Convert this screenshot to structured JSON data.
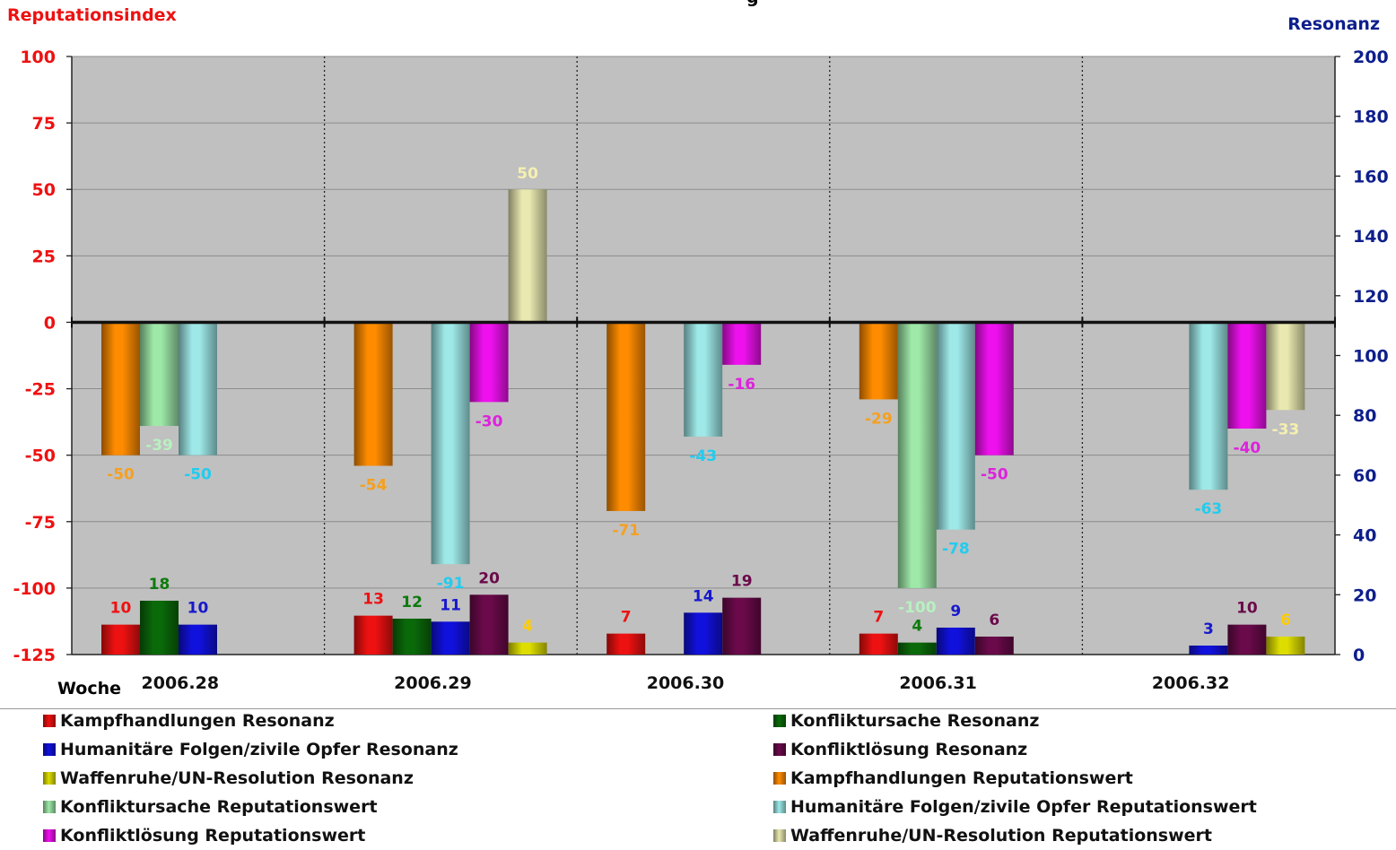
{
  "chart_data": {
    "type": "bar",
    "title": "g",
    "left_axis_title": "Reputationsindex",
    "right_axis_title": "Resonanz",
    "xlabel": "Woche",
    "categories": [
      "2006.28",
      "2006.29",
      "2006.30",
      "2006.31",
      "2006.32"
    ],
    "left_ylim": [
      -125,
      100
    ],
    "left_ticks": [
      100,
      75,
      50,
      25,
      0,
      -25,
      -50,
      -75,
      -100,
      -125
    ],
    "right_ylim": [
      0,
      200
    ],
    "right_ticks": [
      200,
      180,
      160,
      140,
      120,
      100,
      80,
      60,
      40,
      20,
      0
    ],
    "grid": true,
    "resonanz_series": [
      {
        "name": "Kampfhandlungen Resonanz",
        "values": [
          10,
          13,
          7,
          7,
          null
        ],
        "color": "#ee1111",
        "label_color": "#ee1111",
        "slot": 0
      },
      {
        "name": "Konfliktursache Resonanz",
        "values": [
          18,
          12,
          null,
          4,
          null
        ],
        "color": "#0a6a0a",
        "label_color": "#0e7a0e",
        "slot": 1
      },
      {
        "name": "Humanitäre Folgen/zivile Opfer Resonanz",
        "values": [
          10,
          11,
          14,
          9,
          3
        ],
        "color": "#1111dd",
        "label_color": "#1818cc",
        "slot": 2
      },
      {
        "name": "Konfliktlösung Resonanz",
        "values": [
          null,
          20,
          19,
          6,
          10
        ],
        "color": "#6a0a4a",
        "label_color": "#6a0a4a",
        "slot": 3
      },
      {
        "name": "Waffenruhe/UN-Resolution Resonanz",
        "values": [
          null,
          4,
          null,
          null,
          6
        ],
        "color": "#dddd00",
        "label_color": "#ffcc00",
        "slot": 4
      }
    ],
    "reputation_series": [
      {
        "name": "Kampfhandlungen Reputationswert",
        "values": [
          -50,
          -54,
          -71,
          -29,
          null
        ],
        "color": "#ff8c00",
        "label_color": "#f5a020",
        "slot": 0
      },
      {
        "name": "Konfliktursache Reputationswert",
        "values": [
          -39,
          null,
          null,
          -100,
          null
        ],
        "color": "#9ee8a8",
        "label_color": "#b8f0c0",
        "slot": 1
      },
      {
        "name": "Humanitäre Folgen/zivile Opfer Reputationswert",
        "values": [
          -50,
          -91,
          -43,
          -78,
          -63
        ],
        "color": "#9ee8e8",
        "label_color": "#22ccee",
        "slot": 2
      },
      {
        "name": "Konfliktlösung Reputationswert",
        "values": [
          null,
          -30,
          -16,
          -50,
          -40
        ],
        "color": "#ee11ee",
        "label_color": "#dd22dd",
        "slot": 3
      },
      {
        "name": "Waffenruhe/UN-Resolution Reputationswert",
        "values": [
          null,
          50,
          null,
          null,
          -33
        ],
        "color": "#e8e8b0",
        "label_color": "#f5f0b0",
        "slot": 4
      }
    ],
    "legend_order": [
      "Kampfhandlungen Resonanz",
      "Konfliktursache Resonanz",
      "Humanitäre Folgen/zivile Opfer Resonanz",
      "Konfliktlösung Resonanz",
      "Waffenruhe/UN-Resolution Resonanz",
      "Kampfhandlungen Reputationswert",
      "Konfliktursache Reputationswert",
      "Humanitäre Folgen/zivile Opfer Reputationswert",
      "Konfliktlösung Reputationswert",
      "Waffenruhe/UN-Resolution Reputationswert"
    ],
    "colors": {
      "left_axis": "#ee1111",
      "right_axis": "#0d1e8c",
      "plot_bg": "#c0c0c0"
    }
  }
}
